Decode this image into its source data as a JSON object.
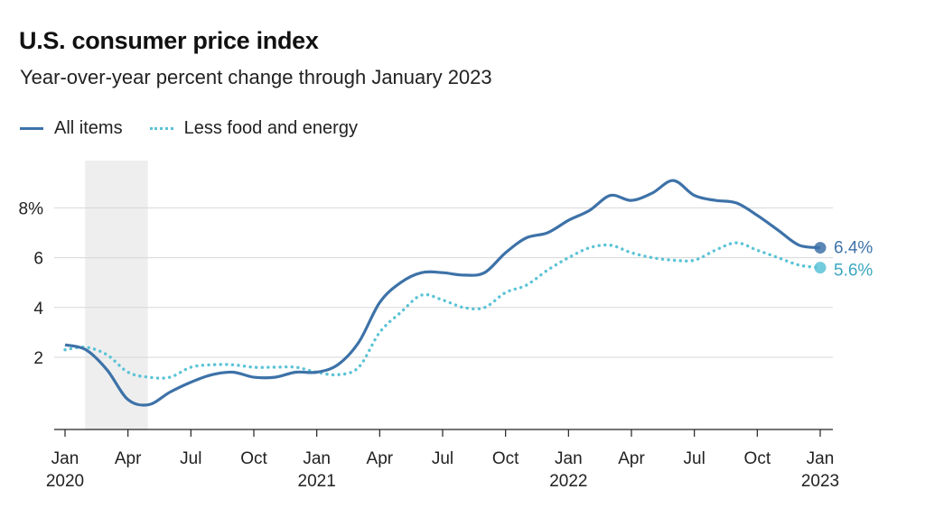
{
  "colors": {
    "all_items": "#3d72a8",
    "less_food_energy": "#5bc3d6",
    "grid": "#d7d7d7",
    "axis": "#222222",
    "shade": "#eeeeee"
  },
  "chart_data": {
    "type": "line",
    "title": "U.S. consumer price index",
    "subtitle": "Year-over-year percent change through January 2023",
    "xlabel": "",
    "ylabel": "",
    "x": [
      "2020-01",
      "2020-02",
      "2020-03",
      "2020-04",
      "2020-05",
      "2020-06",
      "2020-07",
      "2020-08",
      "2020-09",
      "2020-10",
      "2020-11",
      "2020-12",
      "2021-01",
      "2021-02",
      "2021-03",
      "2021-04",
      "2021-05",
      "2021-06",
      "2021-07",
      "2021-08",
      "2021-09",
      "2021-10",
      "2021-11",
      "2021-12",
      "2022-01",
      "2022-02",
      "2022-03",
      "2022-04",
      "2022-05",
      "2022-06",
      "2022-07",
      "2022-08",
      "2022-09",
      "2022-10",
      "2022-11",
      "2022-12",
      "2023-01"
    ],
    "ylim": [
      -0.9,
      9.9
    ],
    "yticks": [
      2,
      4,
      6,
      8
    ],
    "ytick_labels": [
      "2",
      "4",
      "6",
      "8%"
    ],
    "xticks": [
      {
        "x": "2020-01",
        "label": "Jan",
        "year": "2020"
      },
      {
        "x": "2020-04",
        "label": "Apr",
        "year": ""
      },
      {
        "x": "2020-07",
        "label": "Jul",
        "year": ""
      },
      {
        "x": "2020-10",
        "label": "Oct",
        "year": ""
      },
      {
        "x": "2021-01",
        "label": "Jan",
        "year": "2021"
      },
      {
        "x": "2021-04",
        "label": "Apr",
        "year": ""
      },
      {
        "x": "2021-07",
        "label": "Jul",
        "year": ""
      },
      {
        "x": "2021-10",
        "label": "Oct",
        "year": ""
      },
      {
        "x": "2022-01",
        "label": "Jan",
        "year": "2022"
      },
      {
        "x": "2022-04",
        "label": "Apr",
        "year": ""
      },
      {
        "x": "2022-07",
        "label": "Jul",
        "year": ""
      },
      {
        "x": "2022-10",
        "label": "Oct",
        "year": ""
      },
      {
        "x": "2023-01",
        "label": "Jan",
        "year": "2023"
      }
    ],
    "shaded_period": [
      "2020-02",
      "2020-04"
    ],
    "grid": true,
    "legend_position": "top-left",
    "series": [
      {
        "name": "All items",
        "style": "solid",
        "end_label": "6.4%",
        "values": [
          2.5,
          2.3,
          1.5,
          0.3,
          0.1,
          0.6,
          1.0,
          1.3,
          1.4,
          1.2,
          1.2,
          1.4,
          1.4,
          1.7,
          2.6,
          4.2,
          5.0,
          5.4,
          5.4,
          5.3,
          5.4,
          6.2,
          6.8,
          7.0,
          7.5,
          7.9,
          8.5,
          8.3,
          8.6,
          9.1,
          8.5,
          8.3,
          8.2,
          7.7,
          7.1,
          6.5,
          6.4
        ]
      },
      {
        "name": "Less food and energy",
        "style": "dotted",
        "end_label": "5.6%",
        "values": [
          2.3,
          2.4,
          2.1,
          1.4,
          1.2,
          1.2,
          1.6,
          1.7,
          1.7,
          1.6,
          1.6,
          1.6,
          1.4,
          1.3,
          1.6,
          3.0,
          3.8,
          4.5,
          4.3,
          4.0,
          4.0,
          4.6,
          4.9,
          5.5,
          6.0,
          6.4,
          6.5,
          6.2,
          6.0,
          5.9,
          5.9,
          6.3,
          6.6,
          6.3,
          6.0,
          5.7,
          5.6
        ]
      }
    ]
  }
}
